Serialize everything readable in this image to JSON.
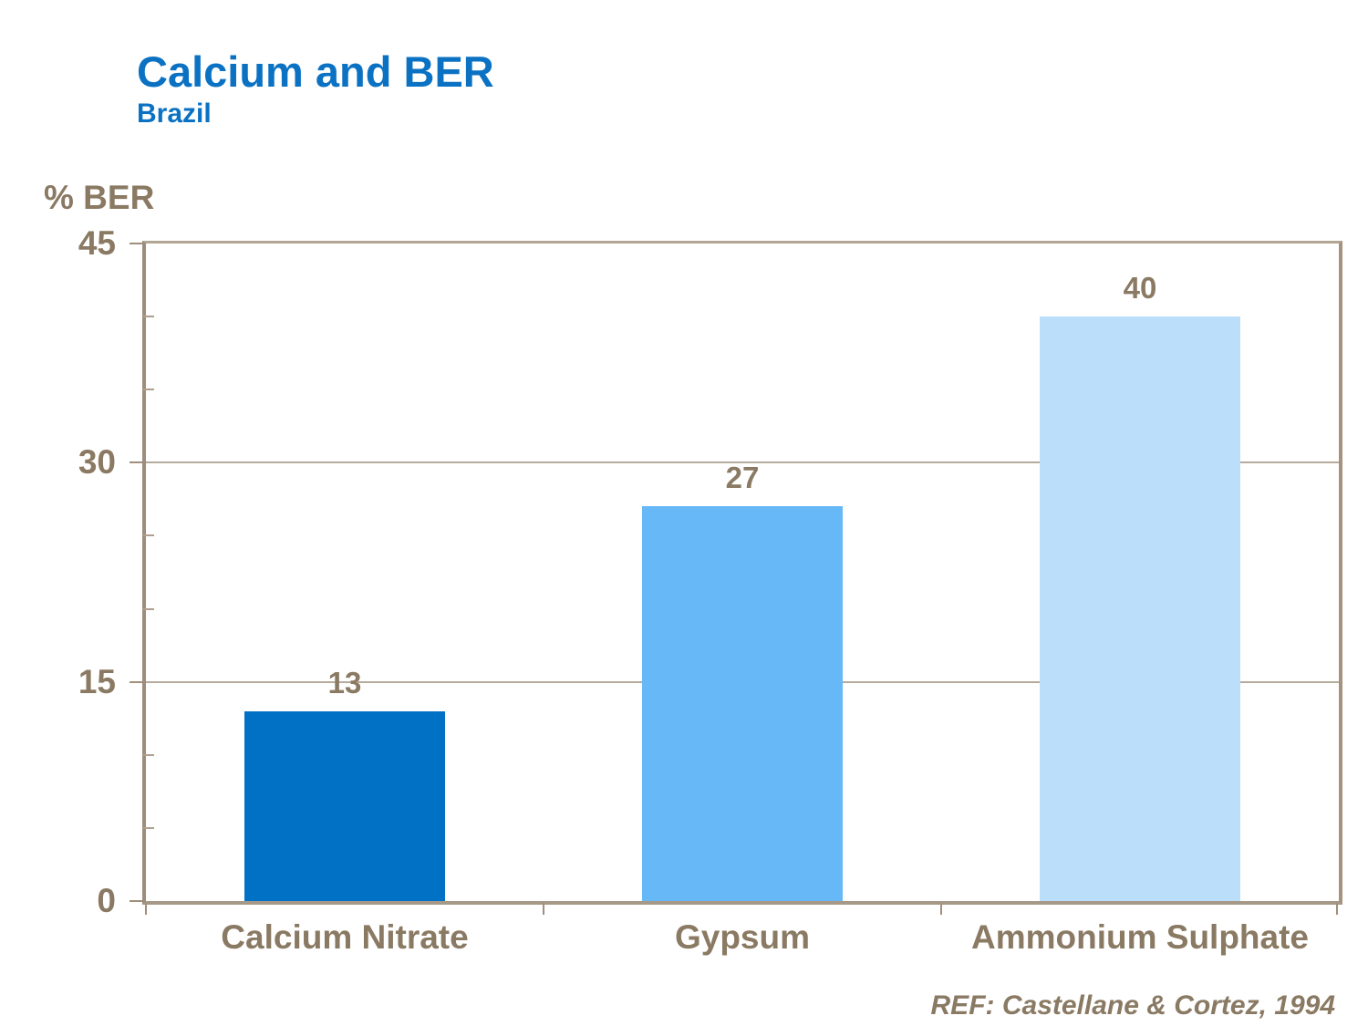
{
  "page": {
    "title": "Calcium and BER",
    "subtitle": "Brazil",
    "reference": "REF: Castellane & Cortez, 1994"
  },
  "chart_data": {
    "type": "bar",
    "title": "Calcium and BER",
    "subtitle": "Brazil",
    "ylabel": "% BER",
    "xlabel": "",
    "categories": [
      "Calcium Nitrate",
      "Gypsum",
      "Ammonium Sulphate"
    ],
    "values": [
      13,
      27,
      40
    ],
    "value_labels": [
      "13",
      "27",
      "40"
    ],
    "ylim": [
      0,
      45
    ],
    "yticks": [
      0,
      15,
      30,
      45
    ],
    "minor_yticks": [
      5,
      10,
      20,
      25,
      35,
      40
    ],
    "grid": "horizontal gridlines at major ticks",
    "legend": "none",
    "reference": "REF: Castellane & Cortez, 1994",
    "colors": {
      "bar_colors": [
        "#0071c4",
        "#66b8f7",
        "#bbdefb"
      ],
      "title_blue": "#0b72c3",
      "label_brown": "#8a7a63",
      "axis_tan": "#a79987",
      "gridline_tan": "#b6ab9c",
      "background": "#ffffff"
    }
  }
}
